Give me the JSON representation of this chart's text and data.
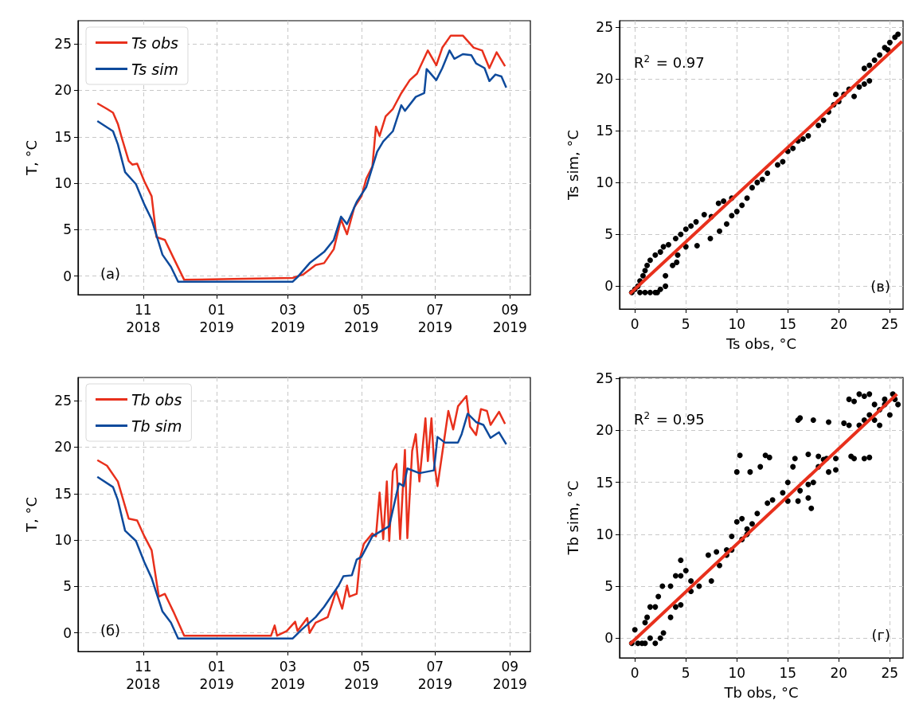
{
  "chart_data": [
    {
      "type": "line",
      "ylabel": "T, °C",
      "xlim": [
        "2018-09-08",
        "2019-09-18"
      ],
      "ylim": [
        -2,
        27.5
      ],
      "yticks": [
        0,
        5,
        10,
        15,
        20,
        25
      ],
      "xticks": [
        {
          "value": "2018-11-01",
          "label": "11\n2018"
        },
        {
          "value": "2019-01-01",
          "label": "01\n2019"
        },
        {
          "value": "2019-03-01",
          "label": "03\n2019"
        },
        {
          "value": "2019-05-01",
          "label": "05\n2019"
        },
        {
          "value": "2019-07-01",
          "label": "07\n2019"
        },
        {
          "value": "2019-09-01",
          "label": "09\n2019"
        }
      ],
      "grid": true,
      "legend": "top left",
      "annotations": [
        "(а)"
      ],
      "series": [
        {
          "name": "Ts obs",
          "color": "#e8301c",
          "x": [
            "2018-09-24",
            "2018-10-02",
            "2018-10-07",
            "2018-10-11",
            "2018-10-14",
            "2018-10-20",
            "2018-10-23",
            "2018-10-27",
            "2018-11-02",
            "2018-11-08",
            "2018-11-12",
            "2018-11-19",
            "2018-11-26",
            "2018-12-05",
            "2019-01-15",
            "2019-03-05",
            "2019-03-14",
            "2019-03-24",
            "2019-03-31",
            "2019-04-08",
            "2019-04-14",
            "2019-04-19",
            "2019-04-25",
            "2019-05-01",
            "2019-05-05",
            "2019-05-10",
            "2019-05-13",
            "2019-05-16",
            "2019-05-21",
            "2019-05-27",
            "2019-06-03",
            "2019-06-10",
            "2019-06-16",
            "2019-06-25",
            "2019-07-02",
            "2019-07-07",
            "2019-07-14",
            "2019-07-24",
            "2019-08-02",
            "2019-08-09",
            "2019-08-15",
            "2019-08-21",
            "2019-08-28"
          ],
          "values": [
            18.6,
            18.0,
            17.6,
            16.4,
            15.0,
            12.4,
            12.0,
            12.1,
            10.2,
            8.6,
            4.2,
            3.9,
            2.0,
            -0.4,
            -0.3,
            -0.2,
            0.2,
            1.2,
            1.4,
            2.9,
            6.1,
            4.5,
            7.4,
            8.6,
            10.5,
            11.8,
            16.1,
            15.1,
            17.2,
            18.0,
            19.7,
            21.1,
            21.8,
            24.3,
            22.7,
            24.6,
            25.9,
            25.9,
            24.6,
            24.3,
            22.4,
            24.1,
            22.6
          ]
        },
        {
          "name": "Ts sim",
          "color": "#0e4a9c",
          "x": [
            "2018-09-24",
            "2018-10-07",
            "2018-10-11",
            "2018-10-17",
            "2018-10-26",
            "2018-11-02",
            "2018-11-08",
            "2018-11-17",
            "2018-11-24",
            "2018-11-30",
            "2019-03-05",
            "2019-03-09",
            "2019-03-19",
            "2019-03-31",
            "2019-04-08",
            "2019-04-14",
            "2019-04-19",
            "2019-04-27",
            "2019-05-05",
            "2019-05-14",
            "2019-05-19",
            "2019-05-27",
            "2019-06-03",
            "2019-06-06",
            "2019-06-15",
            "2019-06-22",
            "2019-06-24",
            "2019-07-02",
            "2019-07-07",
            "2019-07-13",
            "2019-07-17",
            "2019-07-24",
            "2019-07-31",
            "2019-08-04",
            "2019-08-11",
            "2019-08-15",
            "2019-08-20",
            "2019-08-25",
            "2019-08-29"
          ],
          "values": [
            16.7,
            15.6,
            14.2,
            11.2,
            9.9,
            7.7,
            6.1,
            2.3,
            1.0,
            -0.6,
            -0.6,
            -0.1,
            1.4,
            2.6,
            3.9,
            6.4,
            5.6,
            8.0,
            9.6,
            13.4,
            14.5,
            15.6,
            18.4,
            17.8,
            19.3,
            19.7,
            22.3,
            21.1,
            22.4,
            24.3,
            23.4,
            23.9,
            23.8,
            22.9,
            22.4,
            21.0,
            21.7,
            21.5,
            20.3
          ]
        }
      ]
    },
    {
      "type": "scatter",
      "xlabel": "Ts obs, °C",
      "ylabel": "Ts sim, °C",
      "xlim": [
        -1.5,
        26.3
      ],
      "ylim": [
        -2.2,
        25.6
      ],
      "xticks": [
        0,
        5,
        10,
        15,
        20,
        25
      ],
      "yticks": [
        0,
        5,
        10,
        15,
        20,
        25
      ],
      "grid": true,
      "annotations": [
        "R$^{2}$ = 0.97",
        "(в)"
      ],
      "series": [
        {
          "color": "#000000",
          "marker": "circle",
          "x": [
            -0.3,
            0,
            0.3,
            0.5,
            1,
            1.5,
            2,
            2.2,
            0.5,
            0.8,
            1,
            1.2,
            1.5,
            2,
            2.5,
            2.8,
            3.3,
            4,
            4.5,
            5,
            5.5,
            6,
            6.8,
            7.5,
            8.2,
            8.7,
            9.5,
            2.5,
            3,
            3,
            3.7,
            4.1,
            4.2,
            5,
            6.1,
            7.4,
            8.3,
            9,
            9.5,
            10,
            10.5,
            11,
            11.5,
            12,
            12.5,
            13,
            14,
            14.5,
            15,
            15.5,
            16,
            16.5,
            17,
            18,
            18.5,
            19,
            19.5,
            19.7,
            20,
            20.5,
            21,
            21.5,
            22,
            22.5,
            23,
            22.5,
            23,
            23.5,
            24,
            24.5,
            25,
            25.5,
            25.8,
            24.8
          ],
          "values": [
            -0.6,
            -0.3,
            0,
            -0.6,
            -0.6,
            -0.6,
            -0.6,
            -0.6,
            0.5,
            1,
            1.5,
            2,
            2.5,
            3,
            3.3,
            3.8,
            4,
            4.6,
            5,
            5.5,
            5.8,
            6.2,
            6.9,
            6.7,
            8,
            8.2,
            8.5,
            -0.3,
            0,
            1,
            2,
            2.3,
            3,
            3.8,
            3.9,
            4.6,
            5.3,
            6,
            6.8,
            7.2,
            7.8,
            8.5,
            9.5,
            10,
            10.3,
            10.9,
            11.7,
            12,
            13,
            13.3,
            14,
            14.2,
            14.5,
            15.5,
            16,
            16.8,
            17.5,
            18.5,
            17.8,
            18.5,
            19,
            18.3,
            19.2,
            19.5,
            19.8,
            21,
            21.3,
            21.8,
            22.3,
            23,
            23.5,
            24,
            24.3,
            22.8
          ]
        },
        {
          "type": "line",
          "marker": "none",
          "color": "#e8301c",
          "x": [
            -0.5,
            26.2
          ],
          "values": [
            -0.74,
            23.6
          ]
        }
      ]
    },
    {
      "type": "line",
      "ylabel": "T, °C",
      "xlim": [
        "2018-09-08",
        "2019-09-18"
      ],
      "ylim": [
        -2,
        27.5
      ],
      "yticks": [
        0,
        5,
        10,
        15,
        20,
        25
      ],
      "xticks": [
        {
          "value": "2018-11-01",
          "label": "11\n2018"
        },
        {
          "value": "2019-01-01",
          "label": "01\n2019"
        },
        {
          "value": "2019-03-01",
          "label": "03\n2019"
        },
        {
          "value": "2019-05-01",
          "label": "05\n2019"
        },
        {
          "value": "2019-07-01",
          "label": "07\n2019"
        },
        {
          "value": "2019-09-01",
          "label": "09\n2019"
        }
      ],
      "grid": true,
      "legend": "top left",
      "annotations": [
        "(б)"
      ],
      "series": [
        {
          "name": "Tb obs",
          "color": "#e8301c",
          "x": [
            "2018-09-24",
            "2018-10-02",
            "2018-10-11",
            "2018-10-20",
            "2018-10-27",
            "2018-11-02",
            "2018-11-08",
            "2018-11-14",
            "2018-11-19",
            "2018-11-26",
            "2018-12-05",
            "2019-02-15",
            "2019-02-18",
            "2019-02-20",
            "2019-02-28",
            "2019-03-07",
            "2019-03-09",
            "2019-03-17",
            "2019-03-19",
            "2019-03-24",
            "2019-04-03",
            "2019-04-10",
            "2019-04-15",
            "2019-04-19",
            "2019-04-21",
            "2019-04-27",
            "2019-04-30",
            "2019-05-03",
            "2019-05-10",
            "2019-05-13",
            "2019-05-16",
            "2019-05-19",
            "2019-05-22",
            "2019-05-24",
            "2019-05-27",
            "2019-05-30",
            "2019-06-02",
            "2019-06-06",
            "2019-06-08",
            "2019-06-12",
            "2019-06-15",
            "2019-06-18",
            "2019-06-23",
            "2019-06-25",
            "2019-06-28",
            "2019-06-30",
            "2019-07-03",
            "2019-07-07",
            "2019-07-12",
            "2019-07-16",
            "2019-07-20",
            "2019-07-27",
            "2019-07-30",
            "2019-08-04",
            "2019-08-08",
            "2019-08-13",
            "2019-08-16",
            "2019-08-23",
            "2019-08-28"
          ],
          "values": [
            18.6,
            18.0,
            16.3,
            12.3,
            12.1,
            10.4,
            8.9,
            3.9,
            4.2,
            2.3,
            -0.3,
            -0.3,
            0.8,
            -0.3,
            0.2,
            1.2,
            0.2,
            1.6,
            0,
            1.1,
            1.7,
            4.5,
            2.6,
            5.1,
            3.9,
            4.2,
            8.2,
            9.6,
            10.7,
            10.4,
            15.1,
            10.1,
            16.3,
            9.9,
            17.4,
            18.2,
            10.1,
            19.7,
            10.2,
            19.6,
            21.4,
            16.3,
            23.1,
            18.5,
            23.1,
            18.6,
            15.8,
            19.4,
            23.9,
            21.9,
            24.4,
            25.5,
            22.2,
            21.3,
            24.1,
            23.9,
            22.4,
            23.8,
            22.5
          ]
        },
        {
          "name": "Tb sim",
          "color": "#0e4a9c",
          "x": [
            "2018-09-24",
            "2018-10-07",
            "2018-10-11",
            "2018-10-17",
            "2018-10-26",
            "2018-11-02",
            "2018-11-08",
            "2018-11-17",
            "2018-11-24",
            "2018-11-30",
            "2019-03-05",
            "2019-03-12",
            "2019-03-24",
            "2019-03-31",
            "2019-04-12",
            "2019-04-16",
            "2019-04-23",
            "2019-04-27",
            "2019-05-01",
            "2019-05-10",
            "2019-05-24",
            "2019-06-01",
            "2019-06-05",
            "2019-06-08",
            "2019-06-18",
            "2019-06-30",
            "2019-07-03",
            "2019-07-09",
            "2019-07-20",
            "2019-07-23",
            "2019-07-28",
            "2019-08-04",
            "2019-08-10",
            "2019-08-16",
            "2019-08-23",
            "2019-08-29"
          ],
          "values": [
            16.8,
            15.7,
            14.3,
            11.0,
            9.9,
            7.6,
            5.9,
            2.3,
            1.1,
            -0.6,
            -0.6,
            0.3,
            1.7,
            2.8,
            5.1,
            6.1,
            6.2,
            7.9,
            8.2,
            10.4,
            11.5,
            16.1,
            15.8,
            17.7,
            17.2,
            17.5,
            21.1,
            20.5,
            20.5,
            21.4,
            23.6,
            22.7,
            22.4,
            21.0,
            21.6,
            20.3
          ]
        }
      ]
    },
    {
      "type": "scatter",
      "xlabel": "Tb obs, °C",
      "ylabel": "Tb sim, °C",
      "xlim": [
        -1.5,
        26.3
      ],
      "ylim": [
        -1.9,
        25.1
      ],
      "xticks": [
        0,
        5,
        10,
        15,
        20,
        25
      ],
      "yticks": [
        0,
        5,
        10,
        15,
        20,
        25
      ],
      "grid": true,
      "annotations": [
        "R$^{2}$ = 0.95",
        "(г)"
      ],
      "series": [
        {
          "color": "#000000",
          "marker": "circle",
          "x": [
            -0.3,
            0,
            0.3,
            0.7,
            1,
            1.5,
            2,
            2.5,
            2.8,
            1,
            1.2,
            1.5,
            2,
            2.3,
            2.7,
            3.5,
            4,
            4.5,
            5,
            4.5,
            5.5,
            7.2,
            8,
            9,
            9.5,
            10,
            10.5,
            11,
            3.5,
            4,
            4.5,
            5.5,
            6.3,
            7.5,
            8.3,
            9,
            9.5,
            10.5,
            11,
            11.5,
            12,
            13,
            13.5,
            14.5,
            15,
            15,
            16,
            16.2,
            17,
            17,
            17.3,
            17.5,
            18,
            18,
            18.5,
            19,
            19.7,
            19.7,
            10,
            10.3,
            11.3,
            12.3,
            12.8,
            13.2,
            15.5,
            15.7,
            17,
            18.8,
            16,
            16.2,
            17.5,
            19,
            20.5,
            21,
            21.2,
            21.5,
            22.5,
            23,
            21,
            21.5,
            22,
            22.5,
            23,
            23.5,
            24,
            24.5,
            25,
            25.5,
            25.8,
            22,
            22.5,
            23,
            23.5,
            24,
            24.5,
            25.3
          ],
          "values": [
            -0.5,
            0.8,
            -0.5,
            -0.5,
            -0.5,
            0,
            -0.5,
            0,
            0.5,
            1.5,
            2,
            3,
            3,
            4,
            5,
            5,
            6,
            7.5,
            6.5,
            6,
            5.5,
            8,
            8.3,
            8.5,
            9.8,
            11.2,
            11.5,
            10.5,
            2,
            3,
            3.2,
            4.5,
            5,
            5.5,
            7,
            8,
            8.5,
            9.5,
            10,
            11,
            12,
            13,
            13.3,
            14,
            15,
            13.2,
            13.2,
            14.2,
            14.8,
            13.5,
            12.5,
            15,
            16.5,
            17.5,
            17.2,
            16,
            16.2,
            17.3,
            16,
            17.6,
            16,
            16.5,
            17.6,
            17.4,
            16.5,
            17.3,
            17.7,
            17.3,
            21,
            21.2,
            21,
            20.8,
            20.7,
            20.5,
            17.5,
            17.3,
            17.3,
            17.4,
            23,
            22.8,
            23.5,
            23.3,
            23.5,
            22.5,
            22,
            23,
            21.5,
            23,
            22.5,
            20.5,
            21,
            21.5,
            21,
            20.5,
            22.5,
            23.5
          ]
        },
        {
          "type": "line",
          "marker": "none",
          "color": "#e8301c",
          "x": [
            -0.5,
            25.7
          ],
          "values": [
            -0.6,
            23.5
          ]
        }
      ]
    }
  ]
}
